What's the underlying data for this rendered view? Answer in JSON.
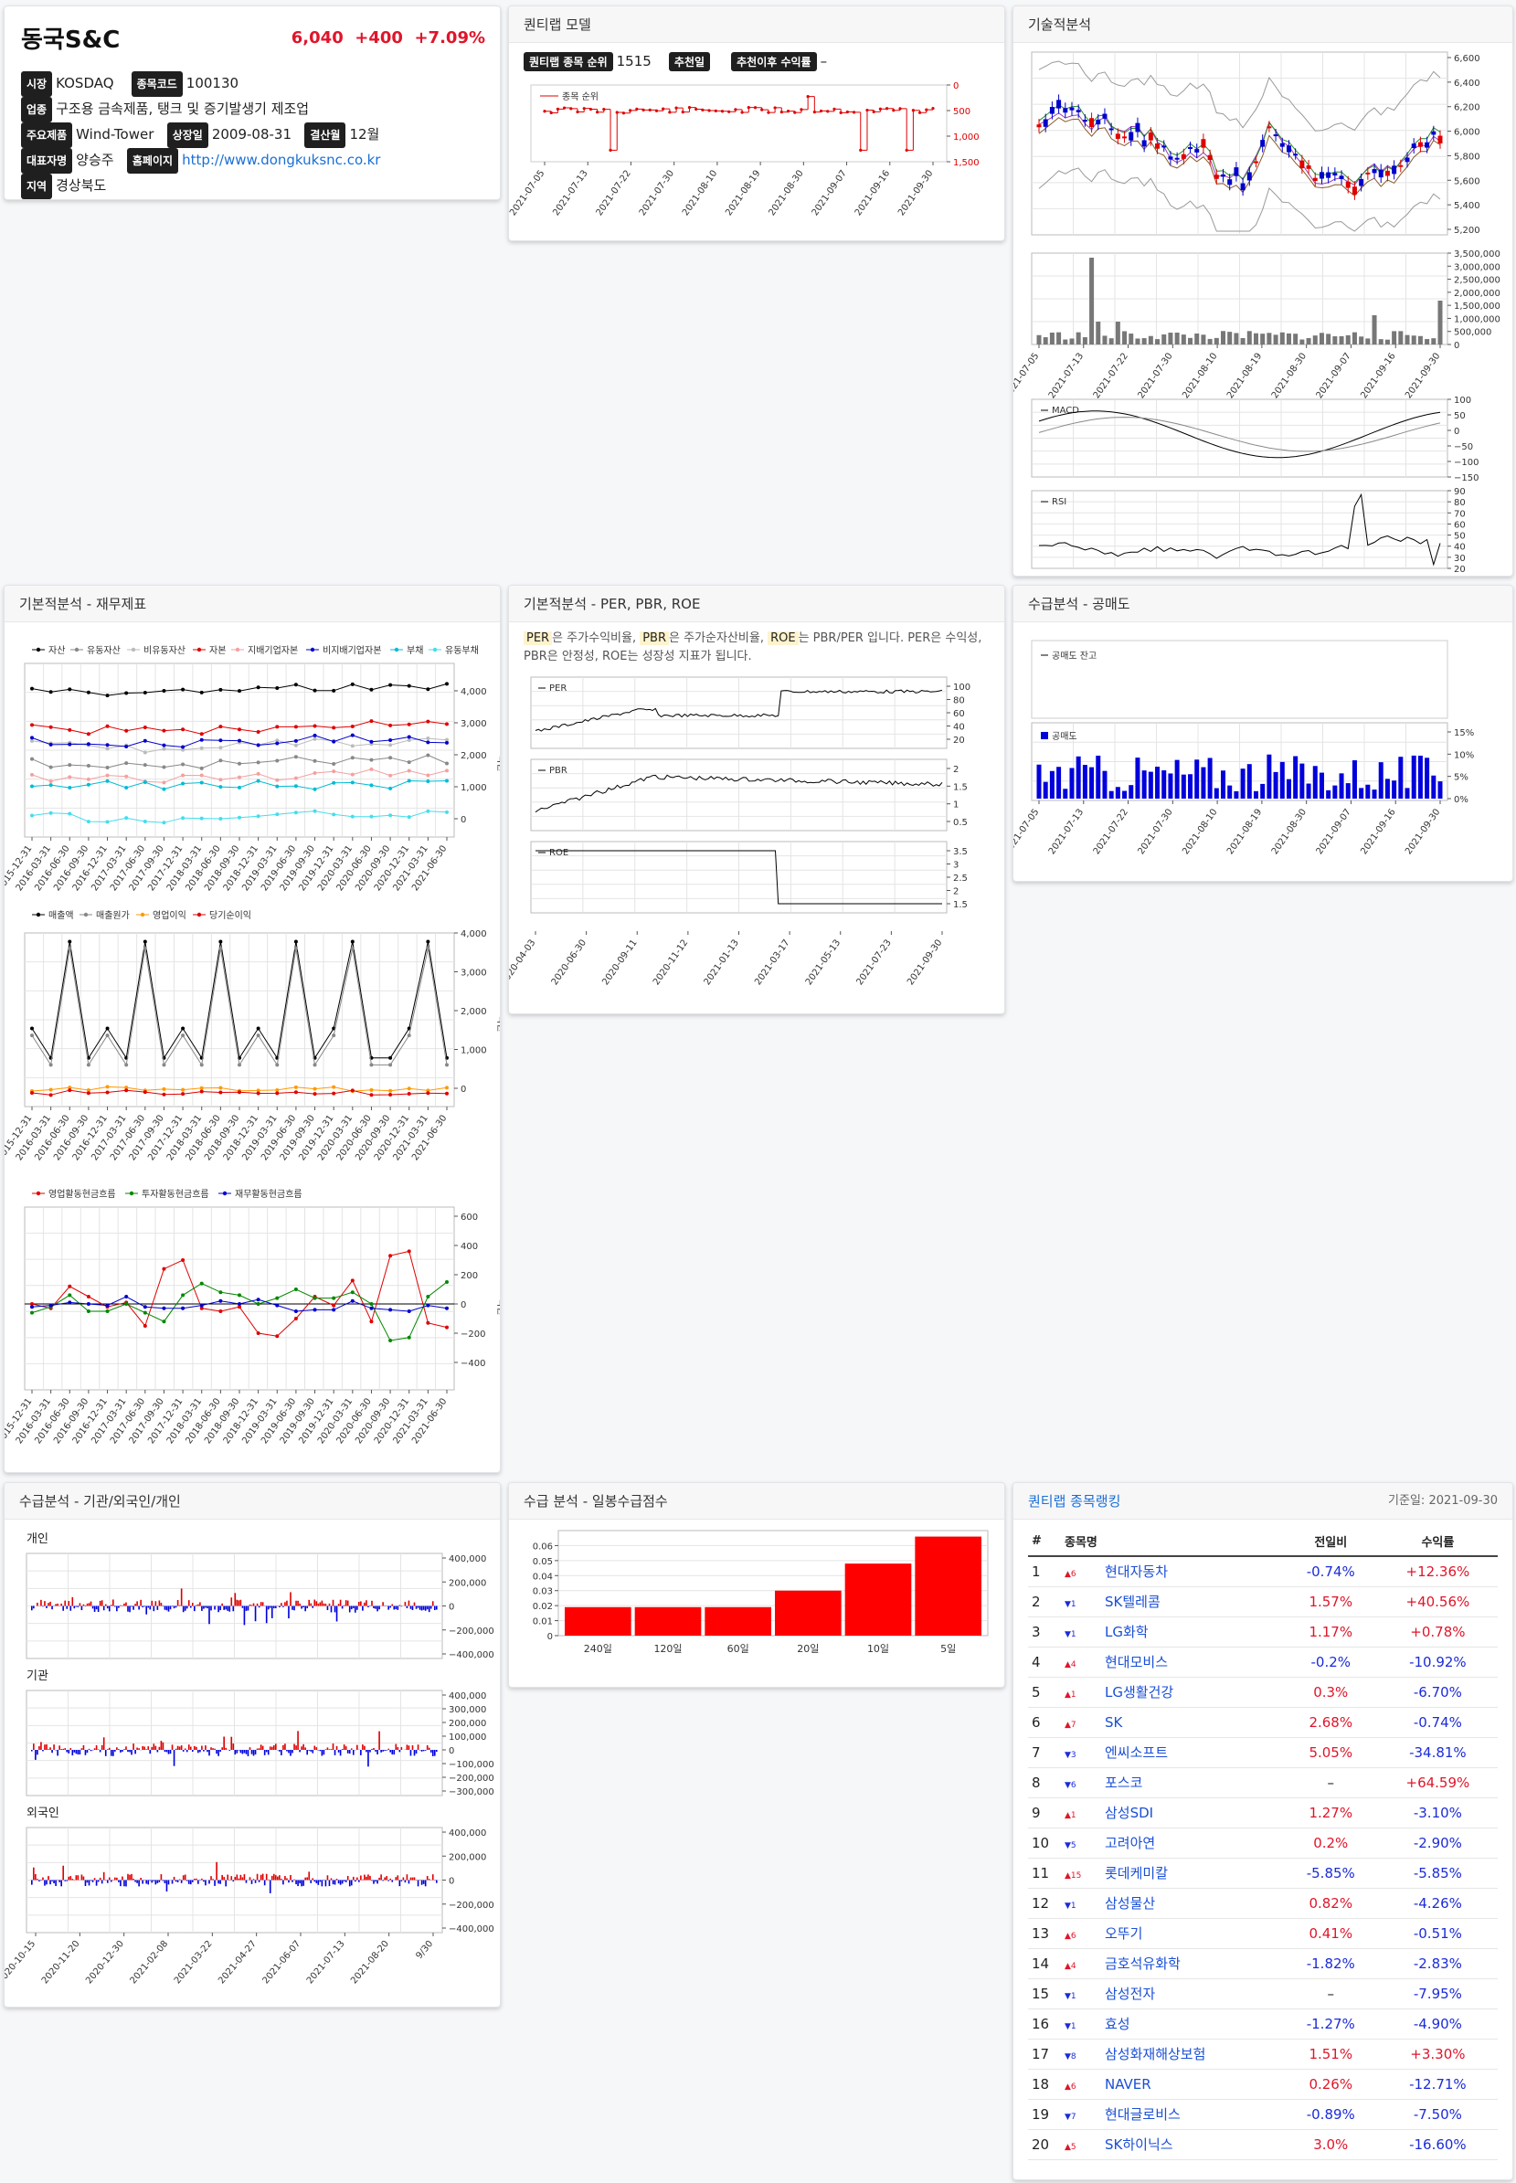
{
  "company": {
    "name": "동국S&C",
    "price": "6,040",
    "change": "+400",
    "change_pct": "+7.09%",
    "market_label": "시장",
    "market": "KOSDAQ",
    "code_label": "종목코드",
    "code": "100130",
    "industry_label": "업종",
    "industry": "구조용 금속제품, 탱크 및 증기발생기 제조업",
    "product_label": "주요제품",
    "product": "Wind-Tower",
    "listing_label": "상장일",
    "listing": "2009-08-31",
    "fiscal_label": "결산월",
    "fiscal": "12월",
    "ceo_label": "대표자명",
    "ceo": "양승주",
    "homepage_label": "홈페이지",
    "homepage": "http://www.dongkuksnc.co.kr",
    "region_label": "지역",
    "region": "경상북도"
  },
  "model": {
    "title": "퀀티랩 모델",
    "rank_label": "퀀티랩 종목 순위",
    "rank": "1515",
    "rec_label": "추천일",
    "rec": "",
    "ret_label": "추천이후 수익률",
    "ret": "–",
    "legend": "종목 순위",
    "yticks": [
      "0",
      "500",
      "1,000",
      "1,500"
    ],
    "xticks": [
      "2021-07-05",
      "2021-07-13",
      "2021-07-22",
      "2021-07-30",
      "2021-08-10",
      "2021-08-19",
      "2021-08-30",
      "2021-09-07",
      "2021-09-16",
      "2021-09-30"
    ]
  },
  "tech": {
    "title": "기술적분석",
    "price_ticks": [
      "6,600",
      "6,400",
      "6,200",
      "6,000",
      "5,800",
      "5,600",
      "5,400",
      "5,200"
    ],
    "vol_ticks": [
      "3,500,000",
      "3,000,000",
      "2,500,000",
      "2,000,000",
      "1,500,000",
      "1,000,000",
      "500,000",
      "0"
    ],
    "xticks": [
      "2021-07-05",
      "2021-07-13",
      "2021-07-22",
      "2021-07-30",
      "2021-08-10",
      "2021-08-19",
      "2021-08-30",
      "2021-09-07",
      "2021-09-16",
      "2021-09-30"
    ],
    "macd_label": "MACD",
    "macd_ticks": [
      "100",
      "50",
      "0",
      "−50",
      "−100",
      "−150"
    ],
    "rsi_label": "RSI",
    "rsi_ticks": [
      "90",
      "80",
      "70",
      "60",
      "50",
      "40",
      "30",
      "20"
    ]
  },
  "fin": {
    "title": "기본적분석 - 재무제표",
    "legend1": [
      "자산",
      "유동자산",
      "비유동자산",
      "자본",
      "지배기업자본",
      "비지배기업자본",
      "부채",
      "유동부채"
    ],
    "legend1_colors": [
      "#000000",
      "#888888",
      "#bbbbbb",
      "#e00000",
      "#f4a0a0",
      "#0000cc",
      "#00bcd4",
      "#44ddee"
    ],
    "y1_ticks": [
      "4,000",
      "3,000",
      "2,000",
      "1,000",
      "0"
    ],
    "y_unit": "억원",
    "legend2": [
      "매출액",
      "매출원가",
      "영업이익",
      "당기순이익"
    ],
    "legend2_colors": [
      "#000000",
      "#888888",
      "#ff9900",
      "#e00000"
    ],
    "y2_ticks": [
      "4,000",
      "3,000",
      "2,000",
      "1,000",
      "0"
    ],
    "legend3": [
      "영업활동현금흐름",
      "투자활동현금흐름",
      "재무활동현금흐름"
    ],
    "legend3_colors": [
      "#e00000",
      "#008800",
      "#0000cc"
    ],
    "y3_ticks": [
      "600",
      "400",
      "200",
      "0",
      "−200",
      "−400"
    ],
    "xticks": [
      "2015-12-31",
      "2016-03-31",
      "2016-06-30",
      "2016-09-30",
      "2016-12-31",
      "2017-03-31",
      "2017-06-30",
      "2017-09-30",
      "2017-12-31",
      "2018-03-31",
      "2018-06-30",
      "2018-09-30",
      "2018-12-31",
      "2019-03-31",
      "2019-06-30",
      "2019-09-30",
      "2019-12-31",
      "2020-03-31",
      "2020-06-30",
      "2020-09-30",
      "2020-12-31",
      "2021-03-31",
      "2021-06-30"
    ]
  },
  "per": {
    "title": "기본적분석 - PER, PBR, ROE",
    "k_per": "PER",
    "t1": "은 주가수익비율, ",
    "k_pbr": "PBR",
    "t2": "은 주가순자산비율, ",
    "k_roe": "ROE",
    "t3": "는 PBR/PER 입니다. PER은 수익성, PBR은 안정성, ROE는 성장성 지표가 됩니다.",
    "per_label": "PER",
    "per_ticks": [
      "100",
      "80",
      "60",
      "40",
      "20"
    ],
    "pbr_label": "PBR",
    "pbr_ticks": [
      "2",
      "1.5",
      "1",
      "0.5"
    ],
    "roe_label": "ROE",
    "roe_ticks": [
      "3.5",
      "3",
      "2.5",
      "2",
      "1.5"
    ],
    "xticks": [
      "2020-04-03",
      "2020-06-30",
      "2020-09-11",
      "2020-11-12",
      "2021-01-13",
      "2021-03-17",
      "2021-05-13",
      "2021-07-23",
      "2021-09-30"
    ]
  },
  "short": {
    "title": "수급분석 - 공매도",
    "legend1": "공매도 잔고",
    "legend2": "공매도",
    "yticks": [
      "15%",
      "10%",
      "5%",
      "0%"
    ],
    "xticks": [
      "2021-07-05",
      "2021-07-13",
      "2021-07-22",
      "2021-07-30",
      "2021-08-10",
      "2021-08-19",
      "2021-08-30",
      "2021-09-07",
      "2021-09-16",
      "2021-09-30"
    ]
  },
  "flow": {
    "title": "수급분석 - 기관/외국인/개인",
    "p1": "개인",
    "p1_ticks": [
      "400,000",
      "200,000",
      "0",
      "−200,000",
      "−400,000"
    ],
    "p2": "기관",
    "p2_ticks": [
      "400,000",
      "300,000",
      "200,000",
      "100,000",
      "0",
      "−100,000",
      "−200,000",
      "−300,000"
    ],
    "p3": "외국인",
    "p3_ticks": [
      "400,000",
      "200,000",
      "0",
      "−200,000",
      "−400,000"
    ],
    "xticks": [
      "2020-10-15",
      "2020-11-20",
      "2020-12-30",
      "2021-02-08",
      "2021-03-22",
      "2021-04-27",
      "2021-06-07",
      "2021-07-13",
      "2021-08-20",
      "9/30"
    ]
  },
  "score": {
    "title": "수급 분석 - 일봉수급점수",
    "yticks": [
      "0.06",
      "0.05",
      "0.04",
      "0.03",
      "0.02",
      "0.01",
      "0"
    ]
  },
  "chart_data": {
    "type": "bar",
    "categories": [
      "240일",
      "120일",
      "60일",
      "20일",
      "10일",
      "5일"
    ],
    "values": [
      0.019,
      0.019,
      0.019,
      0.03,
      0.048,
      0.066
    ],
    "title": "",
    "xlabel": "",
    "ylabel": "",
    "ylim": [
      0,
      0.07
    ],
    "color": "#ff0000"
  },
  "ranking": {
    "title": "퀀티랩 종목랭킹",
    "date": "기준일: 2021-09-30",
    "headers": [
      "#",
      "종목명",
      "전일비",
      "수익률"
    ],
    "rows": [
      {
        "n": "1",
        "mv": "▲6",
        "up": true,
        "name": "현대자동차",
        "chg": "-0.74%",
        "ret": "+12.36%"
      },
      {
        "n": "2",
        "mv": "▼1",
        "up": false,
        "name": "SK텔레콤",
        "chg": "1.57%",
        "ret": "+40.56%"
      },
      {
        "n": "3",
        "mv": "▼1",
        "up": false,
        "name": "LG화학",
        "chg": "1.17%",
        "ret": "+0.78%"
      },
      {
        "n": "4",
        "mv": "▲4",
        "up": true,
        "name": "현대모비스",
        "chg": "-0.2%",
        "ret": "-10.92%"
      },
      {
        "n": "5",
        "mv": "▲1",
        "up": true,
        "name": "LG생활건강",
        "chg": "0.3%",
        "ret": "-6.70%"
      },
      {
        "n": "6",
        "mv": "▲7",
        "up": true,
        "name": "SK",
        "chg": "2.68%",
        "ret": "-0.74%"
      },
      {
        "n": "7",
        "mv": "▼3",
        "up": false,
        "name": "엔씨소프트",
        "chg": "5.05%",
        "ret": "-34.81%"
      },
      {
        "n": "8",
        "mv": "▼6",
        "up": false,
        "name": "포스코",
        "chg": "–",
        "ret": "+64.59%"
      },
      {
        "n": "9",
        "mv": "▲1",
        "up": true,
        "name": "삼성SDI",
        "chg": "1.27%",
        "ret": "-3.10%"
      },
      {
        "n": "10",
        "mv": "▼5",
        "up": false,
        "name": "고려아연",
        "chg": "0.2%",
        "ret": "-2.90%"
      },
      {
        "n": "11",
        "mv": "▲15",
        "up": true,
        "name": "롯데케미칼",
        "chg": "-5.85%",
        "ret": "-5.85%"
      },
      {
        "n": "12",
        "mv": "▼1",
        "up": false,
        "name": "삼성물산",
        "chg": "0.82%",
        "ret": "-4.26%"
      },
      {
        "n": "13",
        "mv": "▲6",
        "up": true,
        "name": "오뚜기",
        "chg": "0.41%",
        "ret": "-0.51%"
      },
      {
        "n": "14",
        "mv": "▲4",
        "up": true,
        "name": "금호석유화학",
        "chg": "-1.82%",
        "ret": "-2.83%"
      },
      {
        "n": "15",
        "mv": "▼1",
        "up": false,
        "name": "삼성전자",
        "chg": "–",
        "ret": "-7.95%"
      },
      {
        "n": "16",
        "mv": "▼1",
        "up": false,
        "name": "효성",
        "chg": "-1.27%",
        "ret": "-4.90%"
      },
      {
        "n": "17",
        "mv": "▼8",
        "up": false,
        "name": "삼성화재해상보험",
        "chg": "1.51%",
        "ret": "+3.30%"
      },
      {
        "n": "18",
        "mv": "▲6",
        "up": true,
        "name": "NAVER",
        "chg": "0.26%",
        "ret": "-12.71%"
      },
      {
        "n": "19",
        "mv": "▼7",
        "up": false,
        "name": "현대글로비스",
        "chg": "-0.89%",
        "ret": "-7.50%"
      },
      {
        "n": "20",
        "mv": "▲5",
        "up": true,
        "name": "SK하이닉스",
        "chg": "3.0%",
        "ret": "-16.60%"
      }
    ]
  }
}
